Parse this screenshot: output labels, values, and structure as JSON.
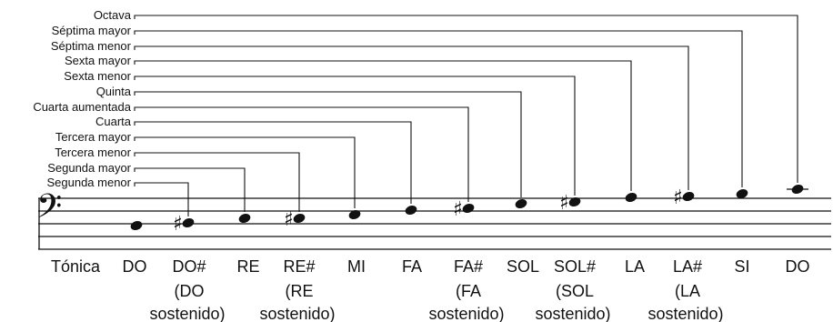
{
  "clef_symbol": "𝄢",
  "interval_labels": [
    "Segunda menor",
    "Segunda mayor",
    "Tercera menor",
    "Tercera mayor",
    "Cuarta",
    "Cuarta aumentada",
    "Quinta",
    "Sexta menor",
    "Sexta mayor",
    "Séptima menor",
    "Séptima mayor",
    "Octava"
  ],
  "tonic_label": "Tónica",
  "notes": [
    {
      "name": "DO",
      "sharp": false,
      "sub1": "",
      "sub2": ""
    },
    {
      "name": "DO#",
      "sharp": true,
      "sub1": "(DO",
      "sub2": "sostenido)"
    },
    {
      "name": "RE",
      "sharp": false,
      "sub1": "",
      "sub2": ""
    },
    {
      "name": "RE#",
      "sharp": true,
      "sub1": "(RE",
      "sub2": "sostenido)"
    },
    {
      "name": "MI",
      "sharp": false,
      "sub1": "",
      "sub2": ""
    },
    {
      "name": "FA",
      "sharp": false,
      "sub1": "",
      "sub2": ""
    },
    {
      "name": "FA#",
      "sharp": true,
      "sub1": "(FA",
      "sub2": "sostenido)"
    },
    {
      "name": "SOL",
      "sharp": false,
      "sub1": "",
      "sub2": ""
    },
    {
      "name": "SOL#",
      "sharp": true,
      "sub1": "(SOL",
      "sub2": "sostenido)"
    },
    {
      "name": "LA",
      "sharp": false,
      "sub1": "",
      "sub2": ""
    },
    {
      "name": "LA#",
      "sharp": true,
      "sub1": "(LA",
      "sub2": "sostenido)"
    },
    {
      "name": "SI",
      "sharp": false,
      "sub1": "",
      "sub2": ""
    },
    {
      "name": "DO",
      "sharp": false,
      "sub1": "",
      "sub2": ""
    }
  ],
  "sharp_symbol": "♯"
}
